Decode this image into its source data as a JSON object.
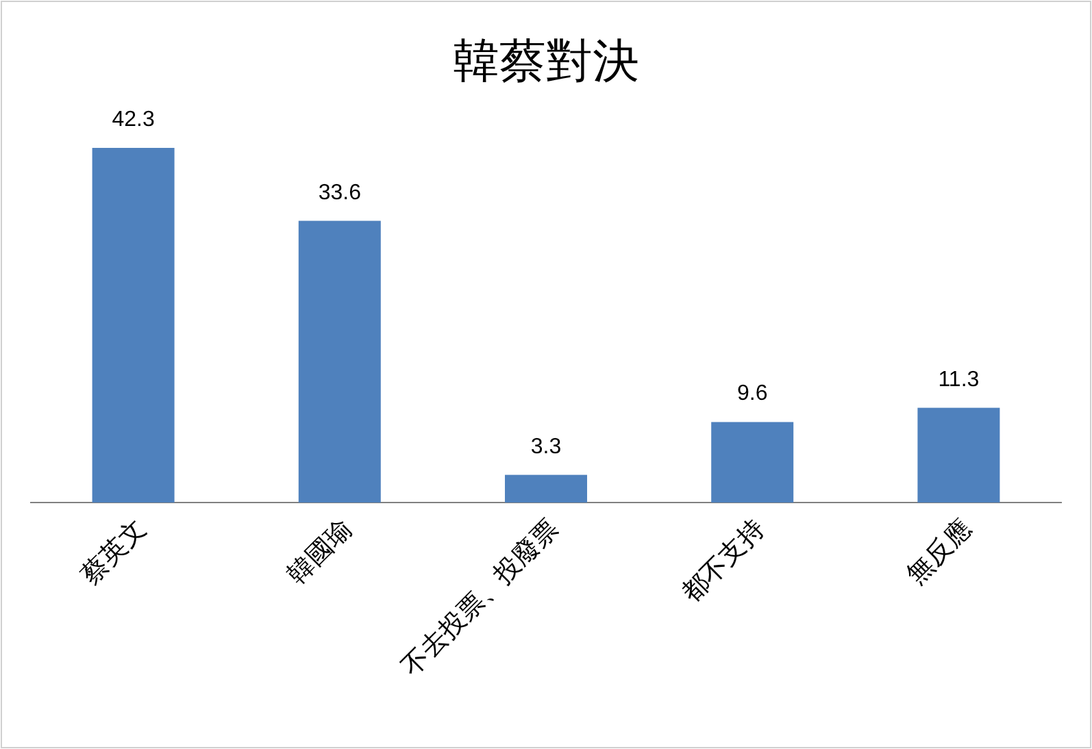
{
  "chart_data": {
    "type": "bar",
    "title": "韓蔡對決",
    "categories": [
      "蔡英文",
      "韓國瑜",
      "不去投票、投廢票",
      "都不支持",
      "無反應"
    ],
    "values": [
      42.3,
      33.6,
      3.3,
      9.6,
      11.3
    ],
    "color": "#4f81bd",
    "data_labels": true
  }
}
